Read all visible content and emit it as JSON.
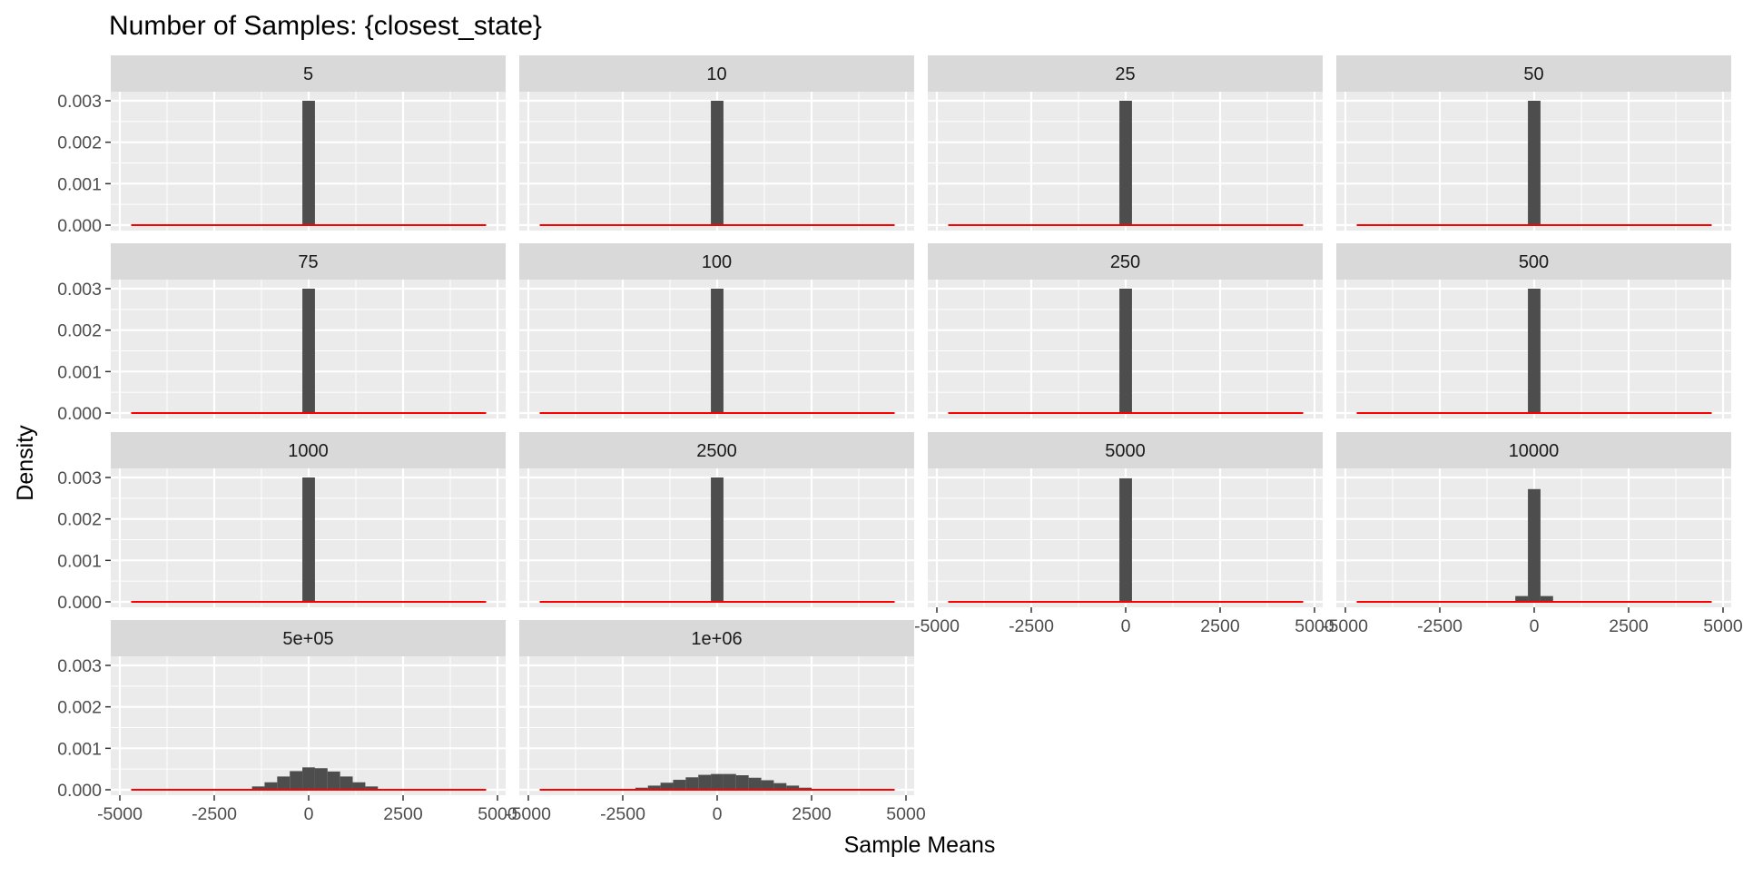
{
  "chart_data": {
    "type": "bar",
    "title": "Number of Samples: {closest_state}",
    "xlabel": "Sample Means",
    "ylabel": "Density",
    "xlim": [
      -5000,
      5000
    ],
    "ylim": [
      0,
      0.003
    ],
    "x_ticks": [
      -5000,
      -2500,
      0,
      2500,
      5000
    ],
    "x_tick_labels": [
      "-5000",
      "-2500",
      "0",
      "2500",
      "5000"
    ],
    "y_ticks": [
      0,
      0.001,
      0.002,
      0.003
    ],
    "y_tick_labels": [
      "0.000",
      "0.001",
      "0.002",
      "0.003"
    ],
    "grid": true,
    "bin_width": 333.33,
    "bin_centers": [
      -4666.67,
      -4333.33,
      -4000,
      -3666.67,
      -3333.33,
      -3000,
      -2666.67,
      -2333.33,
      -2000,
      -1666.67,
      -1333.33,
      -1000,
      -666.67,
      -333.33,
      0,
      333.33,
      666.67,
      1000,
      1333.33,
      1666.67,
      2000,
      2333.33,
      2666.67,
      3000,
      3333.33,
      3666.67,
      4000,
      4333.33,
      4666.67
    ],
    "reference_line": {
      "type": "line",
      "color": "#ff0000",
      "x_range": [
        -4700,
        4700
      ]
    },
    "panels": [
      {
        "label": "5",
        "values": [
          0,
          0,
          0,
          0,
          0,
          0,
          0,
          0,
          0,
          0,
          0,
          0,
          0,
          0,
          0.003,
          0,
          0,
          0,
          0,
          0,
          0,
          0,
          0,
          0,
          0,
          0,
          0,
          0,
          0
        ]
      },
      {
        "label": "10",
        "values": [
          0,
          0,
          0,
          0,
          0,
          0,
          0,
          0,
          0,
          0,
          0,
          0,
          0,
          0,
          0.003,
          0,
          0,
          0,
          0,
          0,
          0,
          0,
          0,
          0,
          0,
          0,
          0,
          0,
          0
        ]
      },
      {
        "label": "25",
        "values": [
          0,
          0,
          0,
          0,
          0,
          0,
          0,
          0,
          0,
          0,
          0,
          0,
          0,
          0,
          0.003,
          0,
          0,
          0,
          0,
          0,
          0,
          0,
          0,
          0,
          0,
          0,
          0,
          0,
          0
        ]
      },
      {
        "label": "50",
        "values": [
          0,
          0,
          0,
          0,
          0,
          0,
          0,
          0,
          0,
          0,
          0,
          0,
          0,
          0,
          0.003,
          0,
          0,
          0,
          0,
          0,
          0,
          0,
          0,
          0,
          0,
          0,
          0,
          0,
          0
        ]
      },
      {
        "label": "75",
        "values": [
          0,
          0,
          0,
          0,
          0,
          0,
          0,
          0,
          0,
          0,
          0,
          0,
          0,
          0,
          0.003,
          0,
          0,
          0,
          0,
          0,
          0,
          0,
          0,
          0,
          0,
          0,
          0,
          0,
          0
        ]
      },
      {
        "label": "100",
        "values": [
          0,
          0,
          0,
          0,
          0,
          0,
          0,
          0,
          0,
          0,
          0,
          0,
          0,
          0,
          0.003,
          0,
          0,
          0,
          0,
          0,
          0,
          0,
          0,
          0,
          0,
          0,
          0,
          0,
          0
        ]
      },
      {
        "label": "250",
        "values": [
          0,
          0,
          0,
          0,
          0,
          0,
          0,
          0,
          0,
          0,
          0,
          0,
          0,
          0,
          0.003,
          0,
          0,
          0,
          0,
          0,
          0,
          0,
          0,
          0,
          0,
          0,
          0,
          0,
          0
        ]
      },
      {
        "label": "500",
        "values": [
          0,
          0,
          0,
          0,
          0,
          0,
          0,
          0,
          0,
          0,
          0,
          0,
          0,
          0,
          0.003,
          0,
          0,
          0,
          0,
          0,
          0,
          0,
          0,
          0,
          0,
          0,
          0,
          0,
          0
        ]
      },
      {
        "label": "1000",
        "values": [
          0,
          0,
          0,
          0,
          0,
          0,
          0,
          0,
          0,
          0,
          0,
          0,
          0,
          0,
          0.003,
          0,
          0,
          0,
          0,
          0,
          0,
          0,
          0,
          0,
          0,
          0,
          0,
          0,
          0
        ]
      },
      {
        "label": "2500",
        "values": [
          0,
          0,
          0,
          0,
          0,
          0,
          0,
          0,
          0,
          0,
          0,
          0,
          0,
          0,
          0.003,
          0,
          0,
          0,
          0,
          0,
          0,
          0,
          0,
          0,
          0,
          0,
          0,
          0,
          0
        ]
      },
      {
        "label": "5000",
        "values": [
          0,
          0,
          0,
          0,
          0,
          0,
          0,
          0,
          0,
          0,
          0,
          0,
          0,
          0,
          0.00298,
          0,
          0,
          0,
          0,
          0,
          0,
          0,
          0,
          0,
          0,
          0,
          0,
          0,
          0
        ]
      },
      {
        "label": "10000",
        "values": [
          0,
          0,
          0,
          0,
          0,
          0,
          0,
          0,
          0,
          0,
          0,
          0,
          0,
          0.00014,
          0.00272,
          0.00014,
          0,
          0,
          0,
          0,
          0,
          0,
          0,
          0,
          0,
          0,
          0,
          0,
          0
        ]
      },
      {
        "label": "5e+05",
        "values": [
          0,
          0,
          0,
          0,
          0,
          0,
          0,
          0,
          0,
          0,
          8e-05,
          0.00018,
          0.00032,
          0.00045,
          0.00054,
          0.00052,
          0.00044,
          0.00032,
          0.00018,
          8e-05,
          0,
          0,
          0,
          0,
          0,
          0,
          0,
          0,
          0
        ]
      },
      {
        "label": "1e+06",
        "values": [
          0,
          0,
          0,
          0,
          0,
          0,
          0,
          2e-05,
          5e-05,
          0.0001,
          0.00017,
          0.00024,
          0.0003,
          0.00036,
          0.00038,
          0.00038,
          0.00035,
          0.00029,
          0.00023,
          0.00016,
          0.0001,
          5e-05,
          2e-05,
          0,
          0,
          0,
          0,
          0,
          0
        ]
      }
    ],
    "n_cols": 4,
    "colors": {
      "bar": "#4d4d4d",
      "line": "#ff0000",
      "panel_bg": "#ebebeb",
      "strip_bg": "#d9d9d9",
      "grid": "#ffffff"
    }
  }
}
